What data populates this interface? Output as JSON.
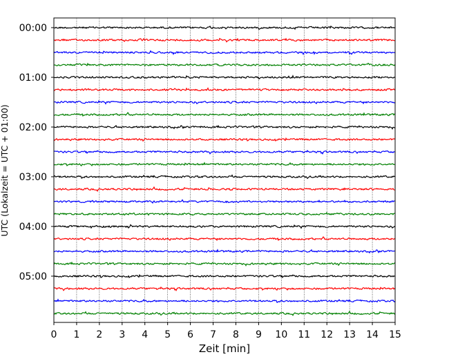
{
  "chart_data": {
    "type": "line",
    "title": "",
    "xlabel": "Zeit  [min]",
    "ylabel": "UTC (Lokalzeit = UTC + 01:00)",
    "xlim": [
      0,
      15
    ],
    "x_ticks": [
      "0",
      "1",
      "2",
      "3",
      "4",
      "5",
      "6",
      "7",
      "8",
      "9",
      "10",
      "11",
      "12",
      "13",
      "14",
      "15"
    ],
    "y_tick_labels": [
      "00:00",
      "01:00",
      "02:00",
      "03:00",
      "04:00",
      "05:00"
    ],
    "traces_per_hour": 4,
    "trace_count": 24,
    "trace_interval_minutes": 15,
    "trace_colors": [
      "#000000",
      "#ff0000",
      "#0000ff",
      "#008000"
    ],
    "grid": "vertical dotted lines at each minute",
    "legend": "none"
  }
}
